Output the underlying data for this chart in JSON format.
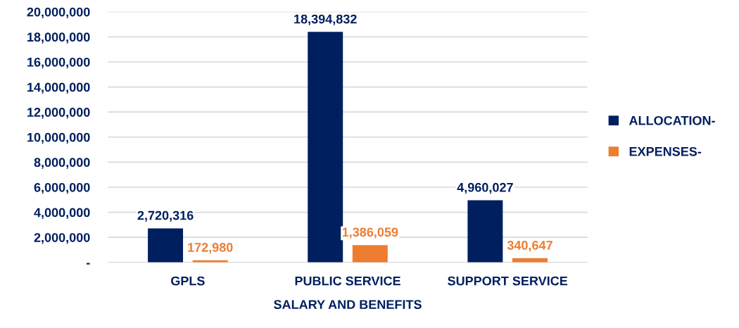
{
  "chart_data": {
    "type": "bar",
    "xlabel": "SALARY AND BENEFITS",
    "categories": [
      "GPLS",
      "PUBLIC SERVICE",
      "SUPPORT SERVICE"
    ],
    "series": [
      {
        "name": "ALLOCATION-",
        "color": "#001f5f",
        "values": [
          2720316,
          18394832,
          4960027
        ],
        "value_labels": [
          "2,720,316",
          "18,394,832",
          "4,960,027"
        ]
      },
      {
        "name": "EXPENSES-",
        "color": "#ed7d31",
        "values": [
          172980,
          1386059,
          340647
        ],
        "value_labels": [
          "172,980",
          "1,386,059",
          "340,647"
        ]
      }
    ],
    "ylim": [
      0,
      20000000
    ],
    "yticks": [
      {
        "value": 0,
        "label": "-"
      },
      {
        "value": 2000000,
        "label": "2,000,000"
      },
      {
        "value": 4000000,
        "label": "4,000,000"
      },
      {
        "value": 6000000,
        "label": "6,000,000"
      },
      {
        "value": 8000000,
        "label": "8,000,000"
      },
      {
        "value": 10000000,
        "label": "10,000,000"
      },
      {
        "value": 12000000,
        "label": "12,000,000"
      },
      {
        "value": 14000000,
        "label": "14,000,000"
      },
      {
        "value": 16000000,
        "label": "16,000,000"
      },
      {
        "value": 18000000,
        "label": "18,000,000"
      },
      {
        "value": 20000000,
        "label": "20,000,000"
      }
    ],
    "grid": "y",
    "legend": "right"
  }
}
